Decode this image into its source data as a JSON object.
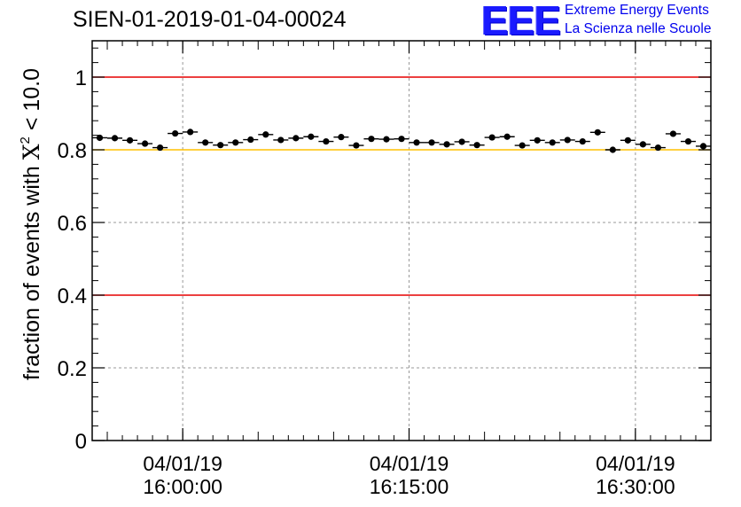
{
  "title": "SIEN-01-2019-01-04-00024",
  "logo": {
    "mark": "EEE",
    "line1": "Extreme Energy Events",
    "line2": "La Scienza nelle Scuole",
    "color": "#1a1aff"
  },
  "y_axis": {
    "label_prefix": "fraction of events with ",
    "label_chi": "X",
    "label_sup": "2",
    "label_suffix": " < 10.0"
  },
  "chart_data": {
    "type": "scatter",
    "title": "SIEN-01-2019-01-04-00024",
    "ylabel": "fraction of events with X^2 < 10.0",
    "ylim": [
      0,
      1.1
    ],
    "yticks": [
      0,
      0.2,
      0.4,
      0.6,
      0.8,
      1
    ],
    "ytick_labels": [
      "0",
      "0.2",
      "0.4",
      "0.6",
      "0.8",
      "1"
    ],
    "xlim_minutes": [
      -6,
      35
    ],
    "xticks_minutes": [
      0,
      15,
      30
    ],
    "xtick_labels": [
      [
        "04/01/19",
        "16:00:00"
      ],
      [
        "04/01/19",
        "16:15:00"
      ],
      [
        "04/01/19",
        "16:30:00"
      ]
    ],
    "grid": true,
    "reference_lines": [
      {
        "y": 1.0,
        "color": "#e60000"
      },
      {
        "y": 0.4,
        "color": "#e60000"
      },
      {
        "y": 0.8,
        "color": "#ffc000"
      }
    ],
    "series": [
      {
        "color": "#000000",
        "x_minutes": [
          -5.5,
          -4.5,
          -3.5,
          -2.5,
          -1.5,
          -0.5,
          0.5,
          1.5,
          2.5,
          3.5,
          4.5,
          5.5,
          6.5,
          7.5,
          8.5,
          9.5,
          10.5,
          11.5,
          12.5,
          13.5,
          14.5,
          15.5,
          16.5,
          17.5,
          18.5,
          19.5,
          20.5,
          21.5,
          22.5,
          23.5,
          24.5,
          25.5,
          26.5,
          27.5,
          28.5,
          29.5,
          30.5,
          31.5,
          32.5,
          33.5,
          34.5
        ],
        "y": [
          0.833,
          0.832,
          0.826,
          0.817,
          0.806,
          0.845,
          0.849,
          0.82,
          0.813,
          0.82,
          0.828,
          0.842,
          0.827,
          0.832,
          0.836,
          0.823,
          0.835,
          0.812,
          0.83,
          0.829,
          0.83,
          0.82,
          0.82,
          0.815,
          0.822,
          0.813,
          0.834,
          0.836,
          0.812,
          0.826,
          0.82,
          0.827,
          0.823,
          0.848,
          0.8,
          0.826,
          0.815,
          0.806,
          0.844,
          0.823,
          0.81
        ],
        "yerr": 0.007
      }
    ]
  }
}
